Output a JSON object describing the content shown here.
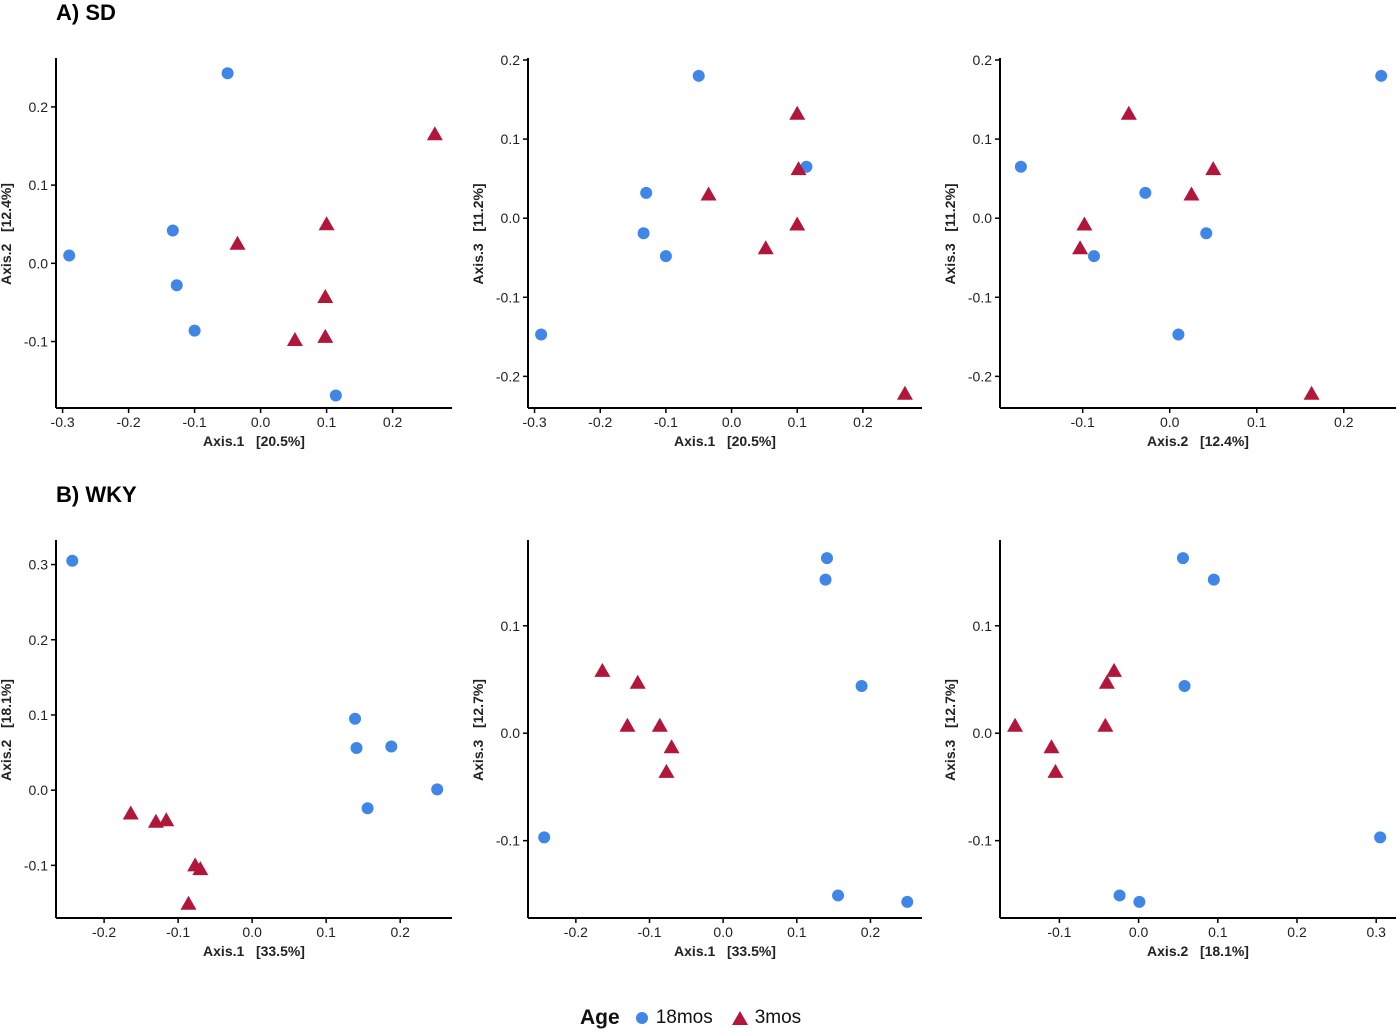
{
  "sections": {
    "sd": {
      "title": "A) SD"
    },
    "wky": {
      "title": "B) WKY"
    }
  },
  "legend": {
    "title": "Age",
    "items": [
      {
        "label": "18mos",
        "shape": "circle",
        "color": "#3f86e6"
      },
      {
        "label": "3mos",
        "shape": "triangle",
        "color": "#b0173a"
      }
    ]
  },
  "colors": {
    "18mos": "#3f86e6",
    "3mos": "#b0173a"
  },
  "chart_data": [
    {
      "id": "sd-axis1-axis2",
      "type": "scatter",
      "section": "A) SD",
      "xlabel": "Axis.1   [20.5%]",
      "ylabel": "Axis.2   [12.4%]",
      "xlim": [
        -0.31,
        0.29
      ],
      "ylim": [
        -0.185,
        0.26
      ],
      "xticks": [
        -0.3,
        -0.2,
        -0.1,
        0.0,
        0.1,
        0.2
      ],
      "xticklabels": [
        "-0.3",
        "-0.2",
        "-0.1",
        "0.0",
        "0.1",
        "0.2"
      ],
      "yticks": [
        -0.1,
        0.0,
        0.1,
        0.2
      ],
      "yticklabels": [
        "-0.1",
        "0.0",
        "0.1",
        "0.2"
      ],
      "series": [
        {
          "name": "18mos",
          "marker": "circle",
          "points": [
            [
              -0.29,
              0.01
            ],
            [
              -0.05,
              0.243
            ],
            [
              -0.133,
              0.042
            ],
            [
              -0.127,
              -0.028
            ],
            [
              -0.1,
              -0.086
            ],
            [
              0.114,
              -0.169
            ]
          ]
        },
        {
          "name": "3mos",
          "marker": "triangle",
          "points": [
            [
              0.264,
              0.165
            ],
            [
              -0.035,
              0.025
            ],
            [
              0.1,
              0.05
            ],
            [
              0.098,
              -0.043
            ],
            [
              0.098,
              -0.094
            ],
            [
              0.052,
              -0.098
            ]
          ]
        }
      ]
    },
    {
      "id": "sd-axis1-axis3",
      "type": "scatter",
      "section": "A) SD",
      "xlabel": "Axis.1   [20.5%]",
      "ylabel": "Axis.3   [11.2%]",
      "xlim": [
        -0.31,
        0.29
      ],
      "ylim": [
        -0.24,
        0.2
      ],
      "xticks": [
        -0.3,
        -0.2,
        -0.1,
        0.0,
        0.1,
        0.2
      ],
      "xticklabels": [
        "-0.3",
        "-0.2",
        "-0.1",
        "0.0",
        "0.1",
        "0.2"
      ],
      "yticks": [
        -0.2,
        -0.1,
        0.0,
        0.1,
        0.2
      ],
      "yticklabels": [
        "-0.2",
        "-0.1",
        "0.0",
        "0.1",
        "0.2"
      ],
      "series": [
        {
          "name": "18mos",
          "marker": "circle",
          "points": [
            [
              -0.05,
              0.18
            ],
            [
              -0.13,
              0.032
            ],
            [
              -0.134,
              -0.019
            ],
            [
              -0.1,
              -0.048
            ],
            [
              0.114,
              0.065
            ],
            [
              -0.29,
              -0.147
            ]
          ]
        },
        {
          "name": "3mos",
          "marker": "triangle",
          "points": [
            [
              0.1,
              0.132
            ],
            [
              0.102,
              0.062
            ],
            [
              -0.035,
              0.03
            ],
            [
              0.1,
              -0.008
            ],
            [
              0.052,
              -0.038
            ],
            [
              0.264,
              -0.222
            ]
          ]
        }
      ]
    },
    {
      "id": "sd-axis2-axis3",
      "type": "scatter",
      "section": "A) SD",
      "xlabel": "Axis.2   [12.4%]",
      "ylabel": "Axis.3   [11.2%]",
      "xlim": [
        -0.195,
        0.26
      ],
      "ylim": [
        -0.24,
        0.2
      ],
      "xticks": [
        -0.1,
        0.0,
        0.1,
        0.2
      ],
      "xticklabels": [
        "-0.1",
        "0.0",
        "0.1",
        "0.2"
      ],
      "yticks": [
        -0.2,
        -0.1,
        0.0,
        0.1,
        0.2
      ],
      "yticklabels": [
        "-0.2",
        "-0.1",
        "0.0",
        "0.1",
        "0.2"
      ],
      "series": [
        {
          "name": "18mos",
          "marker": "circle",
          "points": [
            [
              0.243,
              0.18
            ],
            [
              -0.171,
              0.065
            ],
            [
              -0.028,
              0.032
            ],
            [
              0.042,
              -0.019
            ],
            [
              -0.087,
              -0.048
            ],
            [
              0.01,
              -0.147
            ]
          ]
        },
        {
          "name": "3mos",
          "marker": "triangle",
          "points": [
            [
              -0.047,
              0.132
            ],
            [
              0.05,
              0.062
            ],
            [
              0.025,
              0.03
            ],
            [
              -0.098,
              -0.008
            ],
            [
              -0.103,
              -0.038
            ],
            [
              0.163,
              -0.222
            ]
          ]
        }
      ]
    },
    {
      "id": "wky-axis1-axis2",
      "type": "scatter",
      "section": "B) WKY",
      "xlabel": "Axis.1   [33.5%]",
      "ylabel": "Axis.2   [18.1%]",
      "xlim": [
        -0.265,
        0.27
      ],
      "ylim": [
        -0.17,
        0.33
      ],
      "xticks": [
        -0.2,
        -0.1,
        0.0,
        0.1,
        0.2
      ],
      "xticklabels": [
        "-0.2",
        "-0.1",
        "0.0",
        "0.1",
        "0.2"
      ],
      "yticks": [
        -0.1,
        0.0,
        0.1,
        0.2,
        0.3
      ],
      "yticklabels": [
        "-0.1",
        "0.0",
        "0.1",
        "0.2",
        "0.3"
      ],
      "series": [
        {
          "name": "18mos",
          "marker": "circle",
          "points": [
            [
              -0.243,
              0.305
            ],
            [
              0.139,
              0.095
            ],
            [
              0.141,
              0.056
            ],
            [
              0.188,
              0.058
            ],
            [
              0.156,
              -0.024
            ],
            [
              0.25,
              0.001
            ]
          ]
        },
        {
          "name": "3mos",
          "marker": "triangle",
          "points": [
            [
              -0.164,
              -0.031
            ],
            [
              -0.13,
              -0.042
            ],
            [
              -0.116,
              -0.04
            ],
            [
              -0.077,
              -0.1
            ],
            [
              -0.07,
              -0.105
            ],
            [
              -0.086,
              -0.151
            ]
          ]
        }
      ]
    },
    {
      "id": "wky-axis1-axis3",
      "type": "scatter",
      "section": "B) WKY",
      "xlabel": "Axis.1   [33.5%]",
      "ylabel": "Axis.3   [12.7%]",
      "xlim": [
        -0.265,
        0.27
      ],
      "ylim": [
        -0.172,
        0.178
      ],
      "xticks": [
        -0.2,
        -0.1,
        0.0,
        0.1,
        0.2
      ],
      "xticklabels": [
        "-0.2",
        "-0.1",
        "0.0",
        "0.1",
        "0.2"
      ],
      "yticks": [
        -0.1,
        0.0,
        0.1
      ],
      "yticklabels": [
        "-0.1",
        "0.0",
        "0.1"
      ],
      "series": [
        {
          "name": "18mos",
          "marker": "circle",
          "points": [
            [
              0.141,
              0.163
            ],
            [
              0.139,
              0.143
            ],
            [
              0.188,
              0.044
            ],
            [
              -0.243,
              -0.097
            ],
            [
              0.156,
              -0.151
            ],
            [
              0.25,
              -0.157
            ]
          ]
        },
        {
          "name": "3mos",
          "marker": "triangle",
          "points": [
            [
              -0.164,
              0.058
            ],
            [
              -0.116,
              0.047
            ],
            [
              -0.13,
              0.007
            ],
            [
              -0.086,
              0.007
            ],
            [
              -0.07,
              -0.013
            ],
            [
              -0.077,
              -0.036
            ]
          ]
        }
      ]
    },
    {
      "id": "wky-axis2-axis3",
      "type": "scatter",
      "section": "B) WKY",
      "xlabel": "Axis.2   [18.1%]",
      "ylabel": "Axis.3   [12.7%]",
      "xlim": [
        -0.175,
        0.325
      ],
      "ylim": [
        -0.172,
        0.178
      ],
      "xticks": [
        -0.1,
        0.0,
        0.1,
        0.2,
        0.3
      ],
      "xticklabels": [
        "-0.1",
        "0.0",
        "0.1",
        "0.2",
        "0.3"
      ],
      "yticks": [
        -0.1,
        0.0,
        0.1
      ],
      "yticklabels": [
        "-0.1",
        "0.0",
        "0.1"
      ],
      "series": [
        {
          "name": "18mos",
          "marker": "circle",
          "points": [
            [
              0.056,
              0.163
            ],
            [
              0.095,
              0.143
            ],
            [
              0.058,
              0.044
            ],
            [
              0.305,
              -0.097
            ],
            [
              -0.024,
              -0.151
            ],
            [
              0.001,
              -0.157
            ]
          ]
        },
        {
          "name": "3mos",
          "marker": "triangle",
          "points": [
            [
              -0.031,
              0.058
            ],
            [
              -0.04,
              0.047
            ],
            [
              -0.156,
              0.007
            ],
            [
              -0.042,
              0.007
            ],
            [
              -0.11,
              -0.013
            ],
            [
              -0.105,
              -0.036
            ]
          ]
        }
      ]
    }
  ]
}
